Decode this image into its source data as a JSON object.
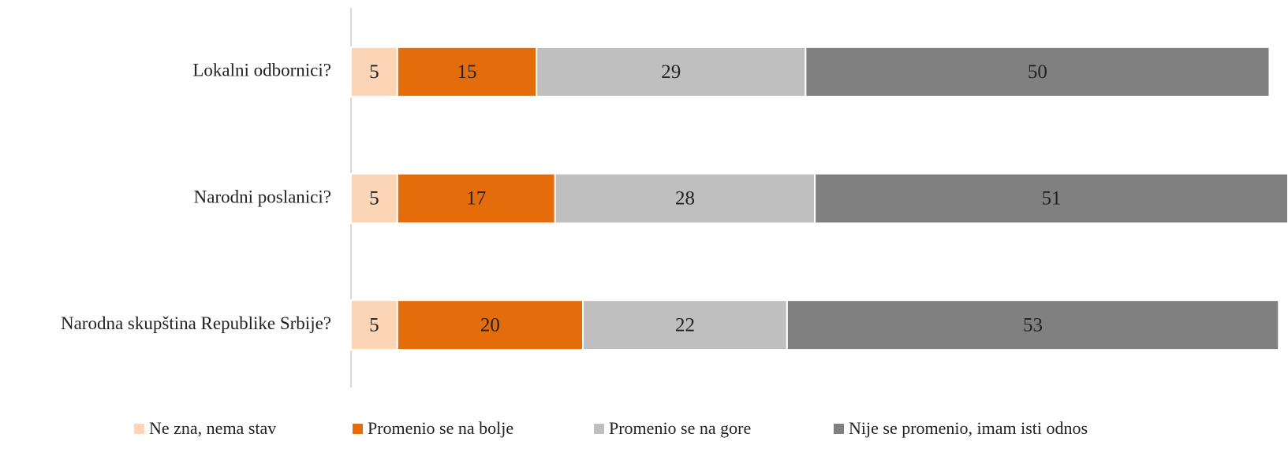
{
  "chart_data": {
    "type": "stacked-bar-horizontal",
    "categories": [
      "Lokalni odbornici?",
      "Narodni poslanici?",
      "Narodna skupština Republike Srbije?"
    ],
    "series": [
      {
        "name": "Ne zna, nema stav",
        "color": "#fbd5b5",
        "values": [
          5,
          5,
          5
        ]
      },
      {
        "name": "Promenio se na bolje",
        "color": "#e46c0a",
        "values": [
          15,
          17,
          20
        ]
      },
      {
        "name": "Promenio se na gore",
        "color": "#bfbfbf",
        "values": [
          29,
          28,
          22
        ]
      },
      {
        "name": "Nije se promenio, imam isti odnos",
        "color": "#808080",
        "values": [
          50,
          51,
          53
        ]
      }
    ],
    "legend": "bottom"
  }
}
